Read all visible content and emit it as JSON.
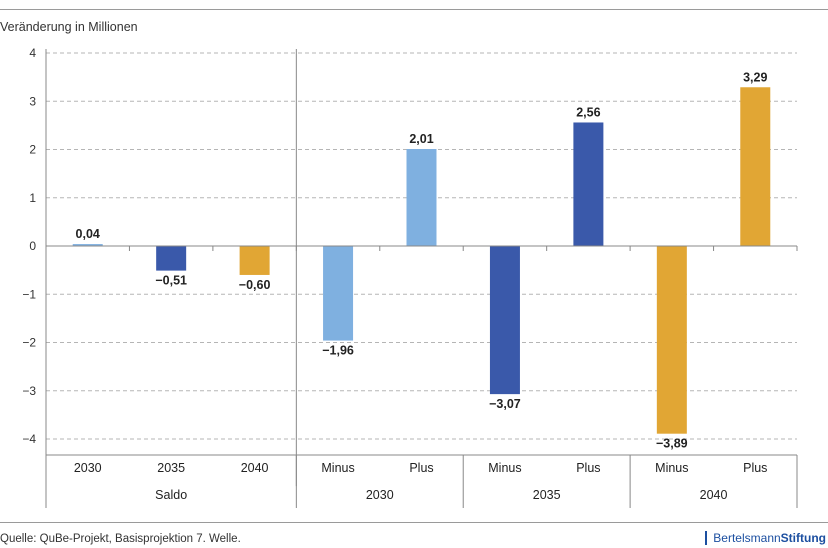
{
  "chart_data": {
    "type": "bar",
    "ylabel": "Veränderung in Millionen",
    "ylim": [
      -4.5,
      4
    ],
    "yticks": [
      4,
      3,
      2,
      1,
      0,
      -1,
      -2,
      -3,
      -4
    ],
    "ytick_labels": [
      "4",
      "3",
      "2",
      "1",
      "0",
      "−1",
      "−2",
      "−3",
      "−4"
    ],
    "grid": true,
    "bars": [
      {
        "category": "2030",
        "group": "Saldo",
        "value": 0.04,
        "label": "0,04",
        "color": "#7fb0e0"
      },
      {
        "category": "2035",
        "group": "Saldo",
        "value": -0.51,
        "label": "−0,51",
        "color": "#3a59aa"
      },
      {
        "category": "2040",
        "group": "Saldo",
        "value": -0.6,
        "label": "−0,60",
        "color": "#e1a634"
      },
      {
        "category": "Minus",
        "group": "2030",
        "value": -1.96,
        "label": "−1,96",
        "color": "#7fb0e0"
      },
      {
        "category": "Plus",
        "group": "2030",
        "value": 2.01,
        "label": "2,01",
        "color": "#7fb0e0"
      },
      {
        "category": "Minus",
        "group": "2035",
        "value": -3.07,
        "label": "−3,07",
        "color": "#3a59aa"
      },
      {
        "category": "Plus",
        "group": "2035",
        "value": 2.56,
        "label": "2,56",
        "color": "#3a59aa"
      },
      {
        "category": "Minus",
        "group": "2040",
        "value": -3.89,
        "label": "−3,89",
        "color": "#e1a634"
      },
      {
        "category": "Plus",
        "group": "2040",
        "value": 3.29,
        "label": "3,29",
        "color": "#e1a634"
      }
    ],
    "groups": [
      {
        "label": "Saldo",
        "span": 3
      },
      {
        "label": "2030",
        "span": 2
      },
      {
        "label": "2035",
        "span": 2
      },
      {
        "label": "2040",
        "span": 2
      }
    ]
  },
  "footer": {
    "source": "Quelle: QuBe-Projekt, Basisprojektion 7. Welle.",
    "brand_light": "Bertelsmann",
    "brand_bold": "Stiftung"
  }
}
